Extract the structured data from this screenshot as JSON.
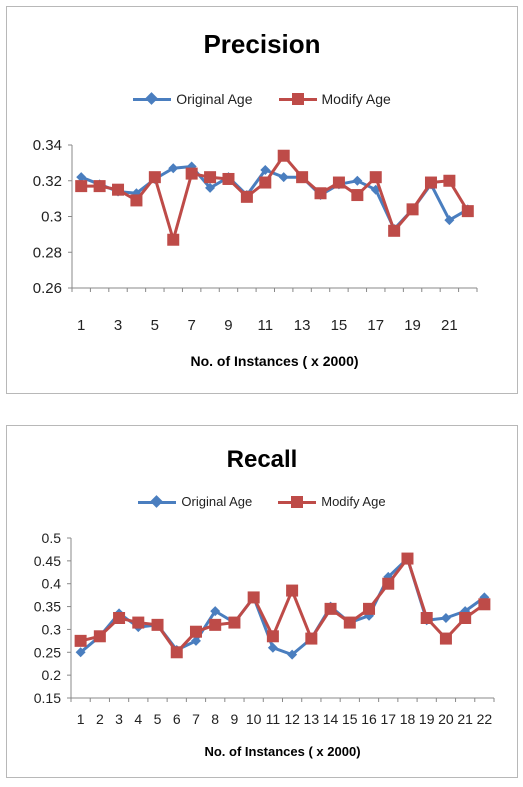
{
  "colors": {
    "original": "#4a7ebf",
    "modify": "#be4b48",
    "axis": "#888888",
    "grid": "#d9d9d9"
  },
  "chart_data": [
    {
      "type": "line",
      "title": "Precision",
      "xlabel": "No. of Instances ( x 2000)",
      "ylabel": "",
      "x": [
        1,
        2,
        3,
        4,
        5,
        6,
        7,
        8,
        9,
        10,
        11,
        12,
        13,
        14,
        15,
        16,
        17,
        18,
        19,
        20,
        21,
        22
      ],
      "x_tick_labels": [
        "1",
        "3",
        "5",
        "7",
        "9",
        "11",
        "13",
        "15",
        "17",
        "19",
        "21"
      ],
      "ylim": [
        0.26,
        0.34
      ],
      "y_tick_labels": [
        "0.26",
        "0.28",
        "0.3",
        "0.32",
        "0.34"
      ],
      "grid": false,
      "legend": "top",
      "series": [
        {
          "name": "Original Age",
          "marker": "diamond",
          "values": [
            0.322,
            0.318,
            0.314,
            0.313,
            0.321,
            0.327,
            0.328,
            0.316,
            0.322,
            0.312,
            0.326,
            0.322,
            0.322,
            0.312,
            0.318,
            0.32,
            0.315,
            0.293,
            0.304,
            0.318,
            0.298,
            0.304
          ]
        },
        {
          "name": "Modify Age",
          "marker": "square",
          "values": [
            0.317,
            0.317,
            0.315,
            0.309,
            0.322,
            0.287,
            0.324,
            0.322,
            0.321,
            0.311,
            0.319,
            0.334,
            0.322,
            0.313,
            0.319,
            0.312,
            0.322,
            0.292,
            0.304,
            0.319,
            0.32,
            0.303
          ]
        }
      ]
    },
    {
      "type": "line",
      "title": "Recall",
      "xlabel": "No. of Instances ( x 2000)",
      "ylabel": "",
      "x": [
        1,
        2,
        3,
        4,
        5,
        6,
        7,
        8,
        9,
        10,
        11,
        12,
        13,
        14,
        15,
        16,
        17,
        18,
        19,
        20,
        21,
        22
      ],
      "x_tick_labels": [
        "1",
        "2",
        "3",
        "4",
        "5",
        "6",
        "7",
        "8",
        "9",
        "10",
        "11",
        "12",
        "13",
        "14",
        "15",
        "16",
        "17",
        "18",
        "19",
        "20",
        "21",
        "22"
      ],
      "ylim": [
        0.15,
        0.5
      ],
      "y_tick_labels": [
        "0.15",
        "0.2",
        "0.25",
        "0.3",
        "0.35",
        "0.4",
        "0.45",
        "0.5"
      ],
      "grid": false,
      "legend": "top",
      "series": [
        {
          "name": "Original Age",
          "marker": "diamond",
          "values": [
            0.25,
            0.285,
            0.335,
            0.305,
            0.31,
            0.255,
            0.275,
            0.34,
            0.315,
            0.37,
            0.26,
            0.245,
            0.28,
            0.35,
            0.315,
            0.33,
            0.415,
            0.455,
            0.32,
            0.325,
            0.34,
            0.37
          ]
        },
        {
          "name": "Modify Age",
          "marker": "square",
          "values": [
            0.275,
            0.285,
            0.325,
            0.315,
            0.31,
            0.25,
            0.295,
            0.31,
            0.315,
            0.37,
            0.285,
            0.385,
            0.28,
            0.345,
            0.315,
            0.345,
            0.4,
            0.455,
            0.325,
            0.28,
            0.325,
            0.355
          ]
        }
      ]
    }
  ]
}
